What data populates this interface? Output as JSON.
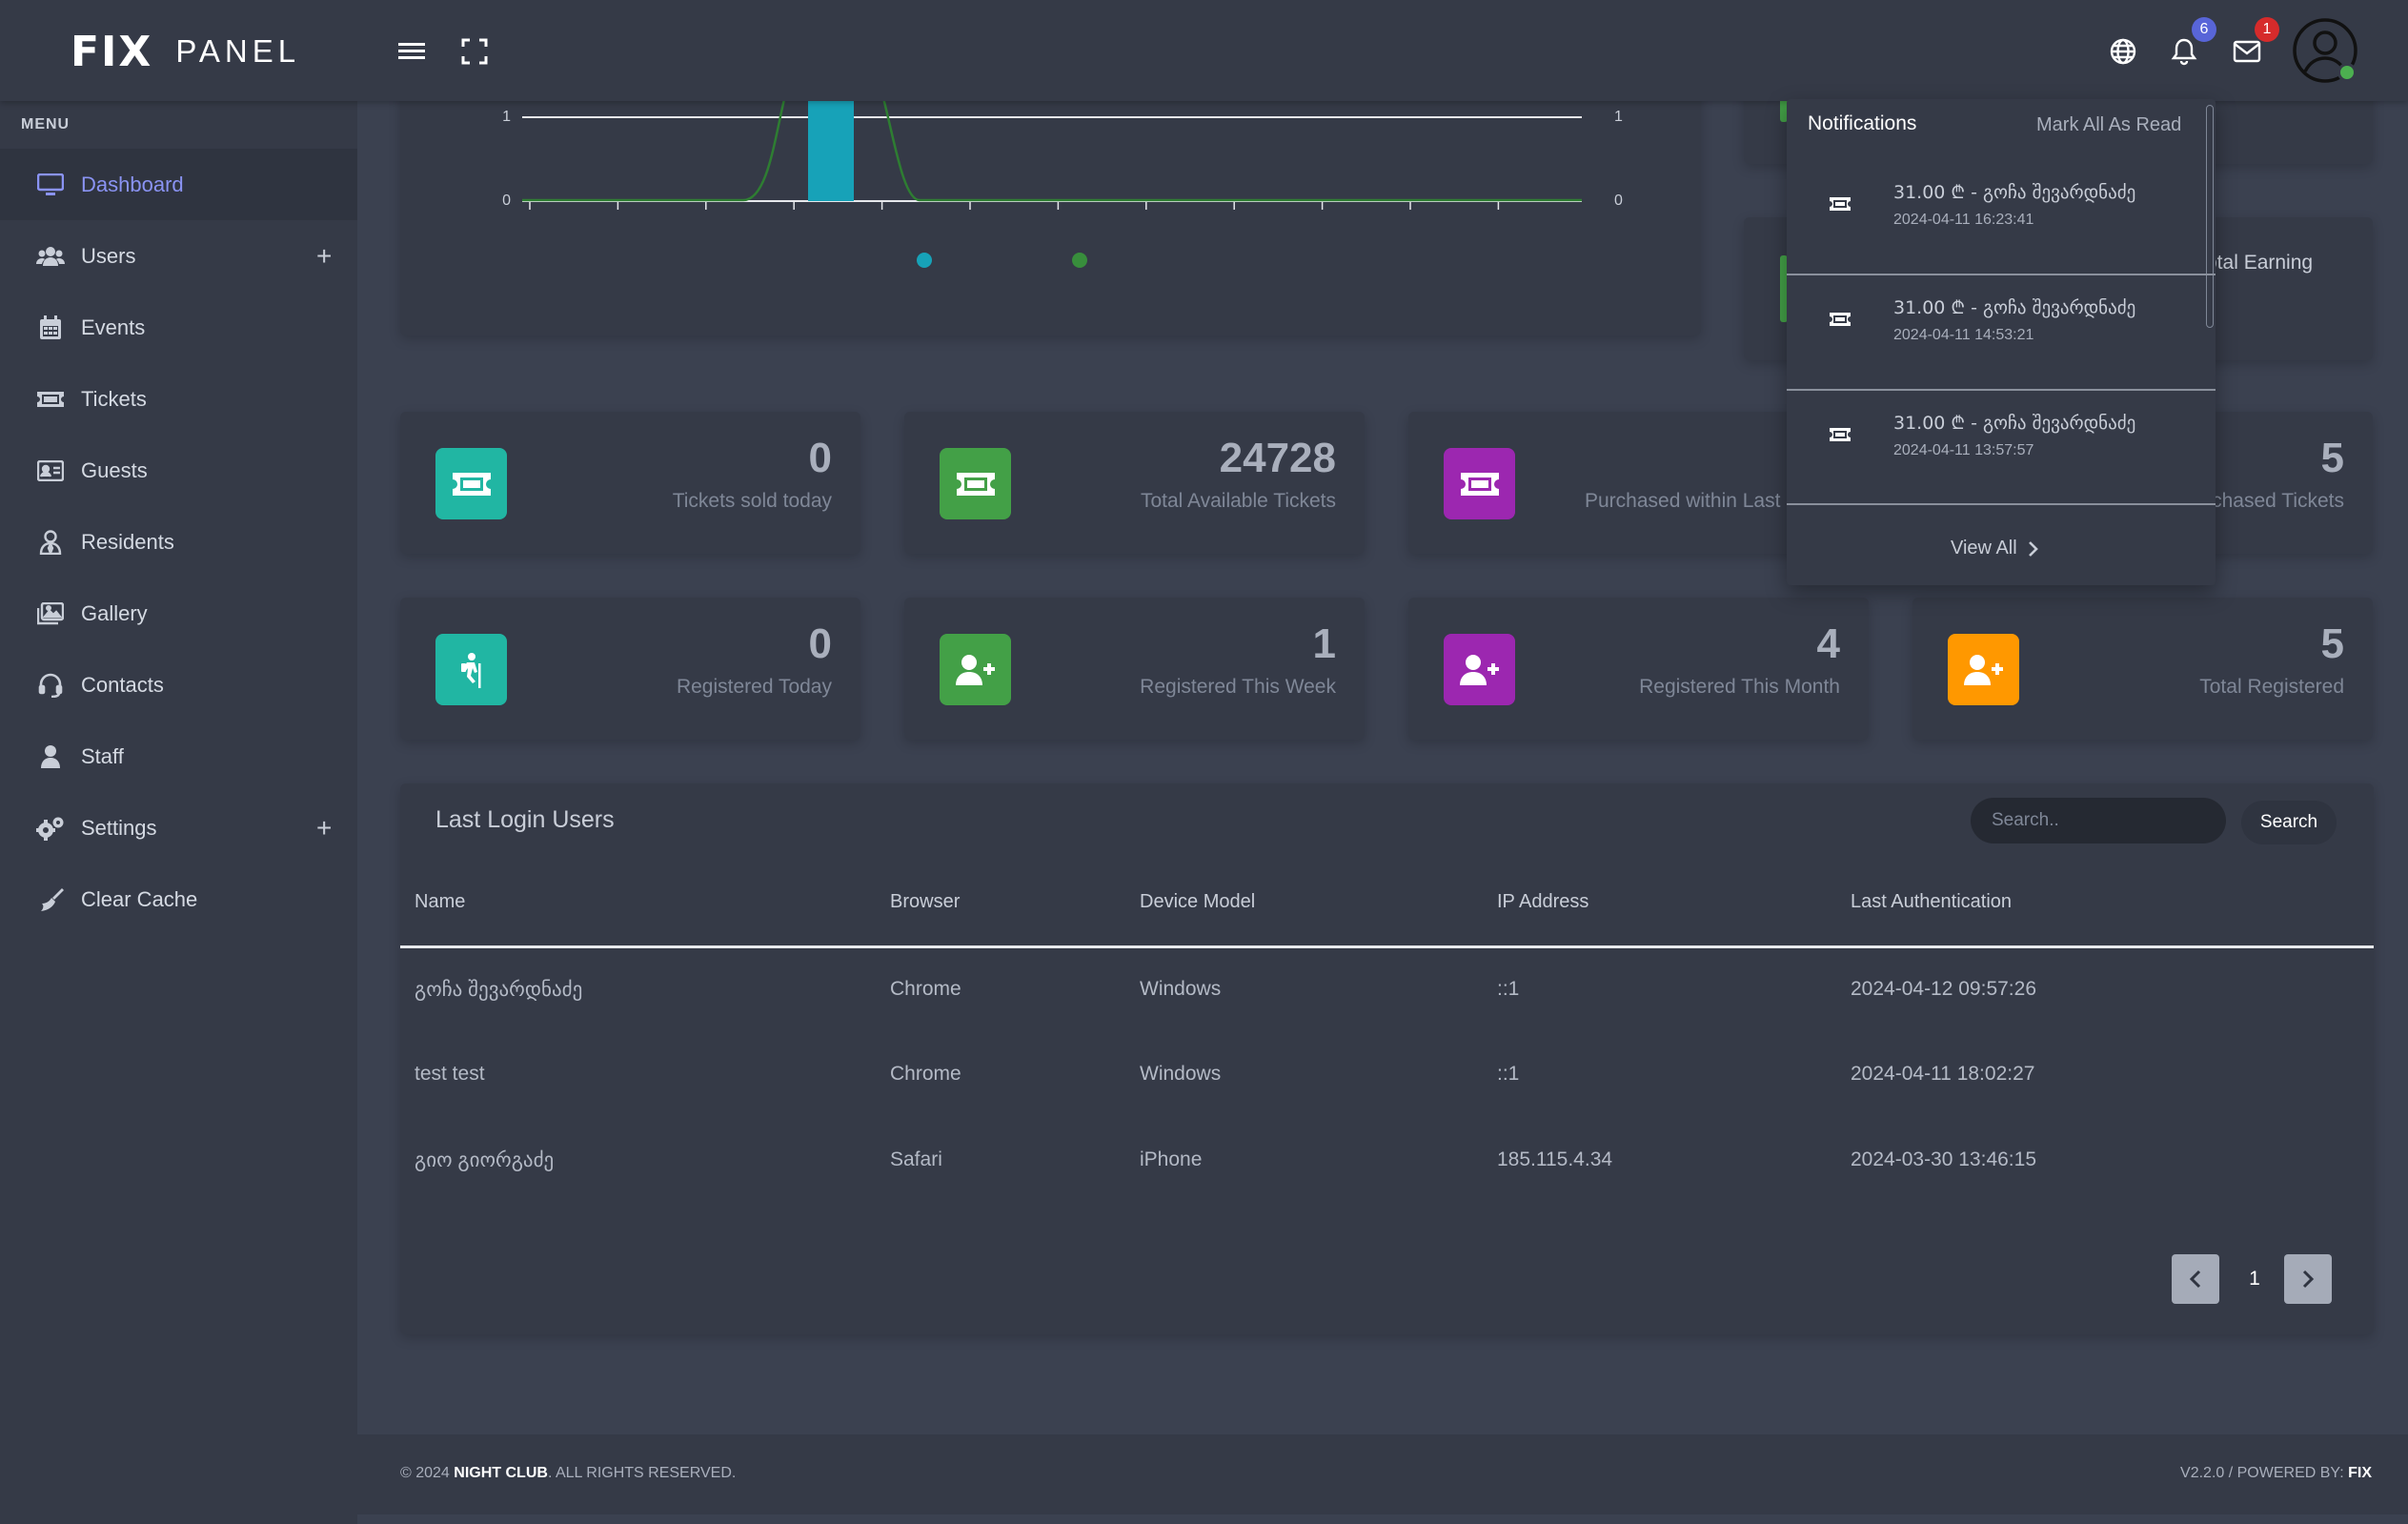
{
  "app": {
    "logo_main": "FIX",
    "logo_sub": "PANEL"
  },
  "header": {
    "notifications_count": "6",
    "messages_count": "1",
    "colors": {
      "notif_badge": "#5865d8",
      "msg_badge": "#d62b2b"
    }
  },
  "sidebar": {
    "menu_title": "MENU",
    "items": [
      {
        "label": "Dashboard",
        "icon": "monitor-icon"
      },
      {
        "label": "Users",
        "icon": "users-icon",
        "expand": "+"
      },
      {
        "label": "Events",
        "icon": "calendar-icon"
      },
      {
        "label": "Tickets",
        "icon": "ticket-icon"
      },
      {
        "label": "Guests",
        "icon": "id-card-icon"
      },
      {
        "label": "Residents",
        "icon": "user-tie-icon"
      },
      {
        "label": "Gallery",
        "icon": "images-icon"
      },
      {
        "label": "Contacts",
        "icon": "headset-icon"
      },
      {
        "label": "Staff",
        "icon": "user-icon"
      },
      {
        "label": "Settings",
        "icon": "gears-icon",
        "expand": "+"
      },
      {
        "label": "Clear Cache",
        "icon": "broom-icon"
      }
    ]
  },
  "chart_data": {
    "type": "bar",
    "y_ticks_left": [
      "1",
      "0"
    ],
    "y_ticks_right": [
      "1",
      "0"
    ],
    "ylim": [
      0,
      1
    ],
    "series_colors": [
      "#17a2b8",
      "#388e3c"
    ]
  },
  "side_cards": {
    "total_earning_label": "otal Earning"
  },
  "stats_row1": [
    {
      "value": "0",
      "label": "Tickets sold today",
      "color": "#21b6a3"
    },
    {
      "value": "24728",
      "label": "Total Available Tickets",
      "color": "#43a047"
    },
    {
      "value": "",
      "label": "Purchased within Last",
      "color": "#9c27b0"
    },
    {
      "value": "5",
      "label": "chased Tickets",
      "color": "#ff9800"
    }
  ],
  "stats_row2": [
    {
      "value": "0",
      "label": "Registered Today",
      "color": "#21b6a3"
    },
    {
      "value": "1",
      "label": "Registered This Week",
      "color": "#43a047"
    },
    {
      "value": "4",
      "label": "Registered This Month",
      "color": "#9c27b0"
    },
    {
      "value": "5",
      "label": "Total Registered",
      "color": "#ff9800"
    }
  ],
  "logins": {
    "title": "Last Login Users",
    "search_placeholder": "Search..",
    "search_button": "Search",
    "columns": [
      "Name",
      "Browser",
      "Device Model",
      "IP Address",
      "Last Authentication"
    ],
    "rows": [
      [
        "გოჩა შევარდნაძე",
        "Chrome",
        "Windows",
        "::1",
        "2024-04-12 09:57:26"
      ],
      [
        "test test",
        "Chrome",
        "Windows",
        "::1",
        "2024-04-11 18:02:27"
      ],
      [
        "გიო გიორგაძე",
        "Safari",
        "iPhone",
        "185.115.4.34",
        "2024-03-30 13:46:15"
      ]
    ],
    "page": "1"
  },
  "notifications": {
    "title": "Notifications",
    "mark_all": "Mark All As Read",
    "view_all": "View All",
    "items": [
      {
        "text": "31.00 ₾ - გოჩა შევარდნაძე",
        "time": "2024-04-11 16:23:41"
      },
      {
        "text": "31.00 ₾ - გოჩა შევარდნაძე",
        "time": "2024-04-11 14:53:21"
      },
      {
        "text": "31.00 ₾ - გოჩა შევარდნაძე",
        "time": "2024-04-11 13:57:57"
      }
    ]
  },
  "footer": {
    "copyright": "© 2024",
    "brand": "NIGHT CLUB",
    "rights": ". ALL RIGHTS RESERVED.",
    "version": "V2.2.0 / POWERED BY:",
    "powered_by": "FIX"
  }
}
